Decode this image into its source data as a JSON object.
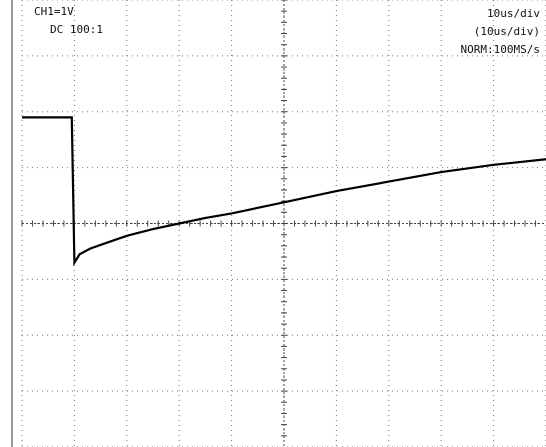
{
  "chart_data": {
    "type": "line",
    "texts": [
      "CH1=1V",
      "DC 100:1",
      "10us/div",
      "(10us/div)",
      "NORM:100MS/s"
    ],
    "x": [
      0,
      9.5,
      10,
      11,
      13,
      16,
      20,
      25,
      30,
      35,
      40,
      50,
      60,
      70,
      80,
      90,
      100
    ],
    "series": [
      {
        "color": "#000000",
        "values": [
          1.9,
          1.9,
          -0.7,
          -0.55,
          -0.45,
          -0.35,
          -0.22,
          -0.1,
          0,
          0.1,
          0.18,
          0.38,
          0.58,
          0.75,
          0.92,
          1.05,
          1.15
        ]
      }
    ],
    "xlim": [
      0,
      100
    ],
    "ylim": [
      -4,
      4
    ],
    "xticks": [
      0,
      10,
      20,
      30,
      40,
      50,
      60,
      70,
      80,
      90,
      100
    ],
    "yticks": [
      -4,
      -3,
      -2,
      -1,
      0,
      1,
      2,
      3,
      4
    ],
    "grid": true
  }
}
